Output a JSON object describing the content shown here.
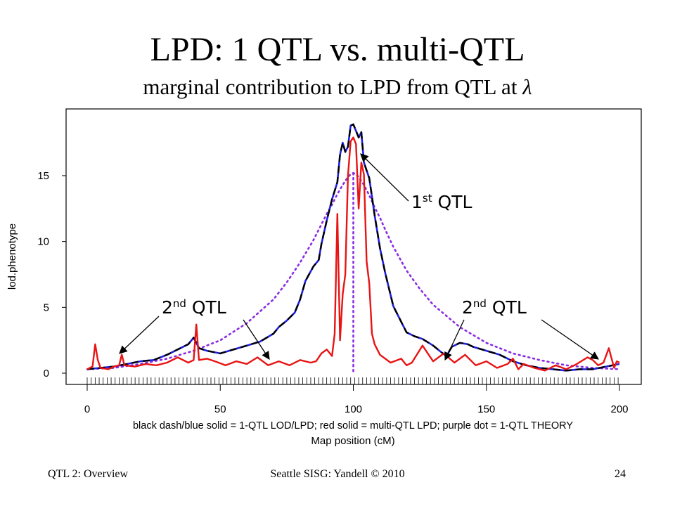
{
  "slide": {
    "title": "LPD: 1 QTL vs. multi-QTL",
    "subtitle_text": "marginal contribution to LPD from QTL at ",
    "subtitle_symbol": "λ"
  },
  "footer": {
    "left": "QTL 2: Overview",
    "center": "Seattle SISG: Yandell © 2010",
    "right": "24"
  },
  "annotations": {
    "first_qtl_base": "1",
    "first_qtl_sup": "st",
    "first_qtl_tail": " QTL",
    "second_qtl_base": "2",
    "second_qtl_sup": "nd",
    "second_qtl_tail": " QTL"
  },
  "chart_data": {
    "type": "line",
    "ylabel": "lod.phenotype",
    "xlabel": "Map position (cM)",
    "caption": "black dash/blue solid = 1-QTL LOD/LPD; red solid = multi-QTL LPD; purple dot = 1-QTL THEORY",
    "xlim": [
      0,
      200
    ],
    "ylim": [
      0,
      19
    ],
    "xticks": [
      0,
      50,
      100,
      150,
      200
    ],
    "yticks": [
      0,
      5,
      10,
      15
    ],
    "grid": false,
    "colors": {
      "black": "#000000",
      "blue": "#1f1fe0",
      "red": "#e81414",
      "purple": "#8a2be2"
    },
    "series": [
      {
        "key": "lod_1qtl",
        "style": "black-dash-blue-solid",
        "x": [
          0,
          5,
          10,
          15,
          20,
          25,
          30,
          35,
          38,
          40,
          42,
          45,
          50,
          55,
          60,
          65,
          70,
          72,
          75,
          78,
          80,
          82,
          85,
          87,
          88,
          90,
          92,
          94,
          95,
          96,
          97,
          98,
          99,
          100,
          101,
          102,
          103,
          104,
          105,
          106,
          107,
          108,
          110,
          112,
          115,
          118,
          120,
          123,
          126,
          130,
          133,
          135,
          137,
          140,
          143,
          145,
          150,
          155,
          160,
          165,
          170,
          175,
          180,
          185,
          190,
          195,
          200
        ],
        "y": [
          0.3,
          0.4,
          0.5,
          0.7,
          0.9,
          1.0,
          1.4,
          1.9,
          2.2,
          2.7,
          1.9,
          1.7,
          1.5,
          1.8,
          2.1,
          2.4,
          3.0,
          3.5,
          4.0,
          4.6,
          5.6,
          7.0,
          8.1,
          8.6,
          9.8,
          11.6,
          13.2,
          14.5,
          16.6,
          17.5,
          16.8,
          17.2,
          18.8,
          18.9,
          18.4,
          17.9,
          18.3,
          16.0,
          15.4,
          14.8,
          13.4,
          12.0,
          9.5,
          7.6,
          5.1,
          3.9,
          3.1,
          2.8,
          2.6,
          2.1,
          1.6,
          1.3,
          2.0,
          2.3,
          2.2,
          2.0,
          1.7,
          1.4,
          0.9,
          0.6,
          0.4,
          0.3,
          0.2,
          0.3,
          0.3,
          0.5,
          0.7
        ]
      },
      {
        "key": "lpd_multi",
        "style": "red-solid",
        "x": [
          0,
          2,
          3,
          4,
          5,
          8,
          10,
          12,
          13,
          14,
          18,
          22,
          26,
          30,
          34,
          38,
          40,
          41,
          42,
          45,
          48,
          52,
          56,
          60,
          64,
          68,
          72,
          76,
          80,
          84,
          86,
          88,
          90,
          92,
          93,
          94,
          95,
          96,
          97,
          98,
          99,
          100,
          101,
          102,
          103,
          104,
          105,
          106,
          107,
          108,
          110,
          114,
          118,
          120,
          122,
          126,
          130,
          134,
          138,
          142,
          146,
          150,
          154,
          158,
          160,
          162,
          164,
          168,
          172,
          176,
          180,
          184,
          188,
          190,
          192,
          194,
          196,
          198,
          199,
          200
        ],
        "y": [
          0.3,
          0.5,
          2.2,
          1.0,
          0.4,
          0.3,
          0.5,
          0.6,
          1.4,
          0.6,
          0.5,
          0.7,
          0.6,
          0.8,
          1.2,
          0.8,
          1.0,
          3.7,
          1.0,
          1.1,
          0.9,
          0.6,
          0.9,
          0.7,
          1.2,
          0.6,
          0.9,
          0.6,
          1.0,
          0.8,
          0.9,
          1.5,
          1.8,
          1.3,
          3.0,
          12.1,
          2.5,
          6.0,
          7.5,
          15.0,
          17.6,
          17.9,
          17.4,
          12.5,
          16.0,
          15.1,
          8.5,
          6.8,
          3.0,
          2.2,
          1.4,
          0.8,
          1.1,
          0.6,
          0.8,
          2.1,
          0.9,
          1.5,
          0.8,
          1.4,
          0.6,
          0.9,
          0.4,
          0.7,
          1.1,
          0.3,
          0.7,
          0.4,
          0.2,
          0.6,
          0.3,
          0.7,
          1.2,
          1.0,
          0.6,
          0.8,
          1.9,
          0.4,
          0.9,
          0.8
        ]
      },
      {
        "key": "theory_1qtl",
        "style": "purple-dot",
        "x": [
          0,
          10,
          20,
          30,
          40,
          50,
          60,
          70,
          75,
          80,
          85,
          88,
          90,
          92,
          94,
          96,
          98,
          99,
          100,
          101,
          102,
          104,
          106,
          108,
          110,
          112,
          115,
          120,
          125,
          130,
          140,
          150,
          160,
          170,
          180,
          190,
          200
        ],
        "y": [
          0.3,
          0.4,
          0.7,
          1.1,
          1.7,
          2.5,
          3.8,
          5.6,
          6.9,
          8.4,
          10.1,
          11.3,
          12.1,
          12.8,
          13.6,
          14.3,
          14.9,
          15.1,
          15.2,
          15.1,
          14.9,
          14.3,
          13.5,
          12.6,
          11.8,
          10.9,
          9.6,
          7.8,
          6.4,
          5.2,
          3.5,
          2.3,
          1.5,
          1.0,
          0.6,
          0.4,
          0.3
        ]
      }
    ],
    "vertical_line_x": 100
  }
}
